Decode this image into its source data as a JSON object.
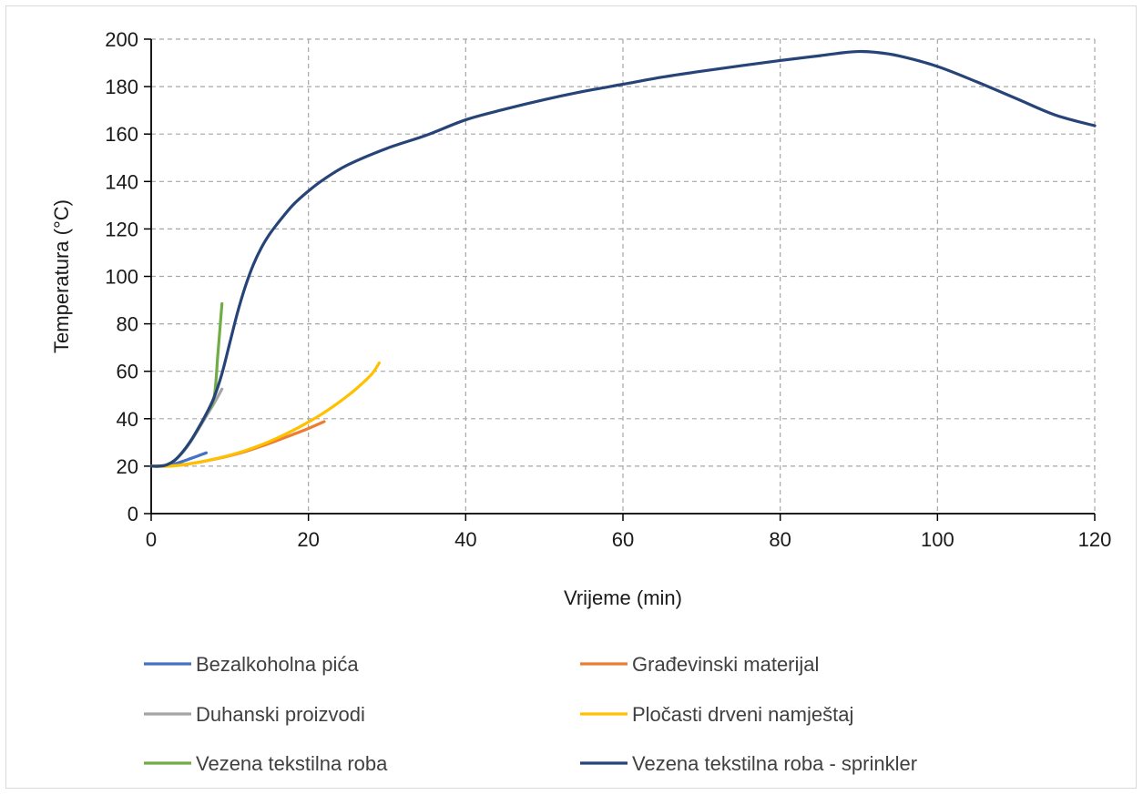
{
  "chart_data": {
    "type": "line",
    "title": "",
    "xlabel": "Vrijeme (min)",
    "ylabel": "Temperatura (°C)",
    "xlim": [
      0,
      120
    ],
    "ylim": [
      0,
      200
    ],
    "xticks": [
      0,
      20,
      40,
      60,
      80,
      100,
      120
    ],
    "yticks": [
      0,
      20,
      40,
      60,
      80,
      100,
      120,
      140,
      160,
      180,
      200
    ],
    "grid": true,
    "grid_style": "dashed",
    "legend_position": "bottom",
    "series": [
      {
        "name": "Bezalkoholna pića",
        "color": "#4472c4",
        "x": [
          0,
          1,
          2,
          3,
          4,
          5,
          6,
          7
        ],
        "y": [
          20,
          20,
          20.3,
          21,
          22,
          23.2,
          24.4,
          25.6
        ]
      },
      {
        "name": "Građevinski materijal",
        "color": "#ed7d31",
        "x": [
          0,
          2,
          4,
          6,
          8,
          10,
          12,
          14,
          16,
          18,
          20,
          22
        ],
        "y": [
          20,
          20,
          20.6,
          21.6,
          22.9,
          24.4,
          26.2,
          28.4,
          30.8,
          33.3,
          35.9,
          38.8
        ]
      },
      {
        "name": "Duhanski proizvodi",
        "color": "#a5a5a5",
        "x": [
          0,
          1,
          2,
          3,
          4,
          5,
          6,
          7,
          8,
          9
        ],
        "y": [
          20,
          20,
          20.6,
          22.5,
          25.8,
          30.2,
          35.5,
          41,
          46.5,
          52.5
        ]
      },
      {
        "name": "Pločasti drveni namještaj",
        "color": "#ffc000",
        "x": [
          0,
          2,
          4,
          6,
          8,
          10,
          12,
          14,
          16,
          18,
          20,
          22,
          24,
          26,
          28,
          29
        ],
        "y": [
          20,
          20,
          20.5,
          21.6,
          23,
          24.6,
          26.6,
          29,
          31.8,
          35,
          38.6,
          42.6,
          47.2,
          52.4,
          58.6,
          63.5
        ]
      },
      {
        "name": "Vezena tekstilna roba",
        "color": "#70ad47",
        "x": [
          0,
          1,
          2,
          3,
          4,
          5,
          6,
          7,
          8,
          8.5,
          9
        ],
        "y": [
          20,
          20,
          20.6,
          22.5,
          26,
          30.5,
          36,
          42,
          49,
          68,
          88.5
        ]
      },
      {
        "name": "Vezena tekstilna roba - sprinkler",
        "color": "#264478",
        "x": [
          0,
          1,
          2,
          3,
          4,
          5,
          6,
          7,
          8,
          9,
          10,
          11,
          12,
          13,
          14,
          15,
          16,
          18,
          20,
          22,
          25,
          30,
          35,
          40,
          45,
          50,
          55,
          60,
          65,
          70,
          75,
          80,
          85,
          88,
          90,
          92,
          95,
          100,
          105,
          110,
          115,
          120
        ],
        "y": [
          20,
          20,
          20.6,
          22.5,
          26,
          30.5,
          36,
          42,
          49,
          59,
          72,
          85,
          96,
          105,
          112,
          117.5,
          122,
          130,
          136,
          141,
          147,
          154,
          159.5,
          166,
          170.5,
          174.5,
          178,
          181,
          184,
          186.5,
          188.8,
          191,
          193,
          194.3,
          194.8,
          194.5,
          193,
          188.5,
          182,
          175,
          168,
          163.5
        ]
      }
    ]
  }
}
